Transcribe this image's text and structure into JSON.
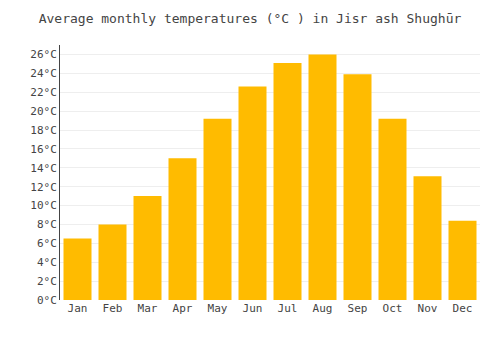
{
  "chart_data": {
    "type": "bar",
    "title": "Average monthly temperatures (°C ) in Jisr ash Shughūr",
    "categories": [
      "Jan",
      "Feb",
      "Mar",
      "Apr",
      "May",
      "Jun",
      "Jul",
      "Aug",
      "Sep",
      "Oct",
      "Nov",
      "Dec"
    ],
    "values": [
      6.5,
      8.0,
      11.0,
      15.0,
      19.2,
      22.6,
      25.1,
      26.0,
      23.9,
      19.2,
      13.1,
      8.4
    ],
    "color": "#FFBB00",
    "ylim": [
      0,
      27
    ],
    "yticks": [
      {
        "value": 0,
        "label": "0°C"
      },
      {
        "value": 2,
        "label": "2°C"
      },
      {
        "value": 4,
        "label": "4°C"
      },
      {
        "value": 6,
        "label": "6°C"
      },
      {
        "value": 8,
        "label": "8°C"
      },
      {
        "value": 10,
        "label": "10°C"
      },
      {
        "value": 12,
        "label": "12°C"
      },
      {
        "value": 14,
        "label": "14°C"
      },
      {
        "value": 16,
        "label": "16°C"
      },
      {
        "value": 18,
        "label": "18°C"
      },
      {
        "value": 20,
        "label": "20°C"
      },
      {
        "value": 22,
        "label": "22°C"
      },
      {
        "value": 24,
        "label": "24°C"
      },
      {
        "value": 26,
        "label": "26°C"
      }
    ],
    "grid": true
  }
}
